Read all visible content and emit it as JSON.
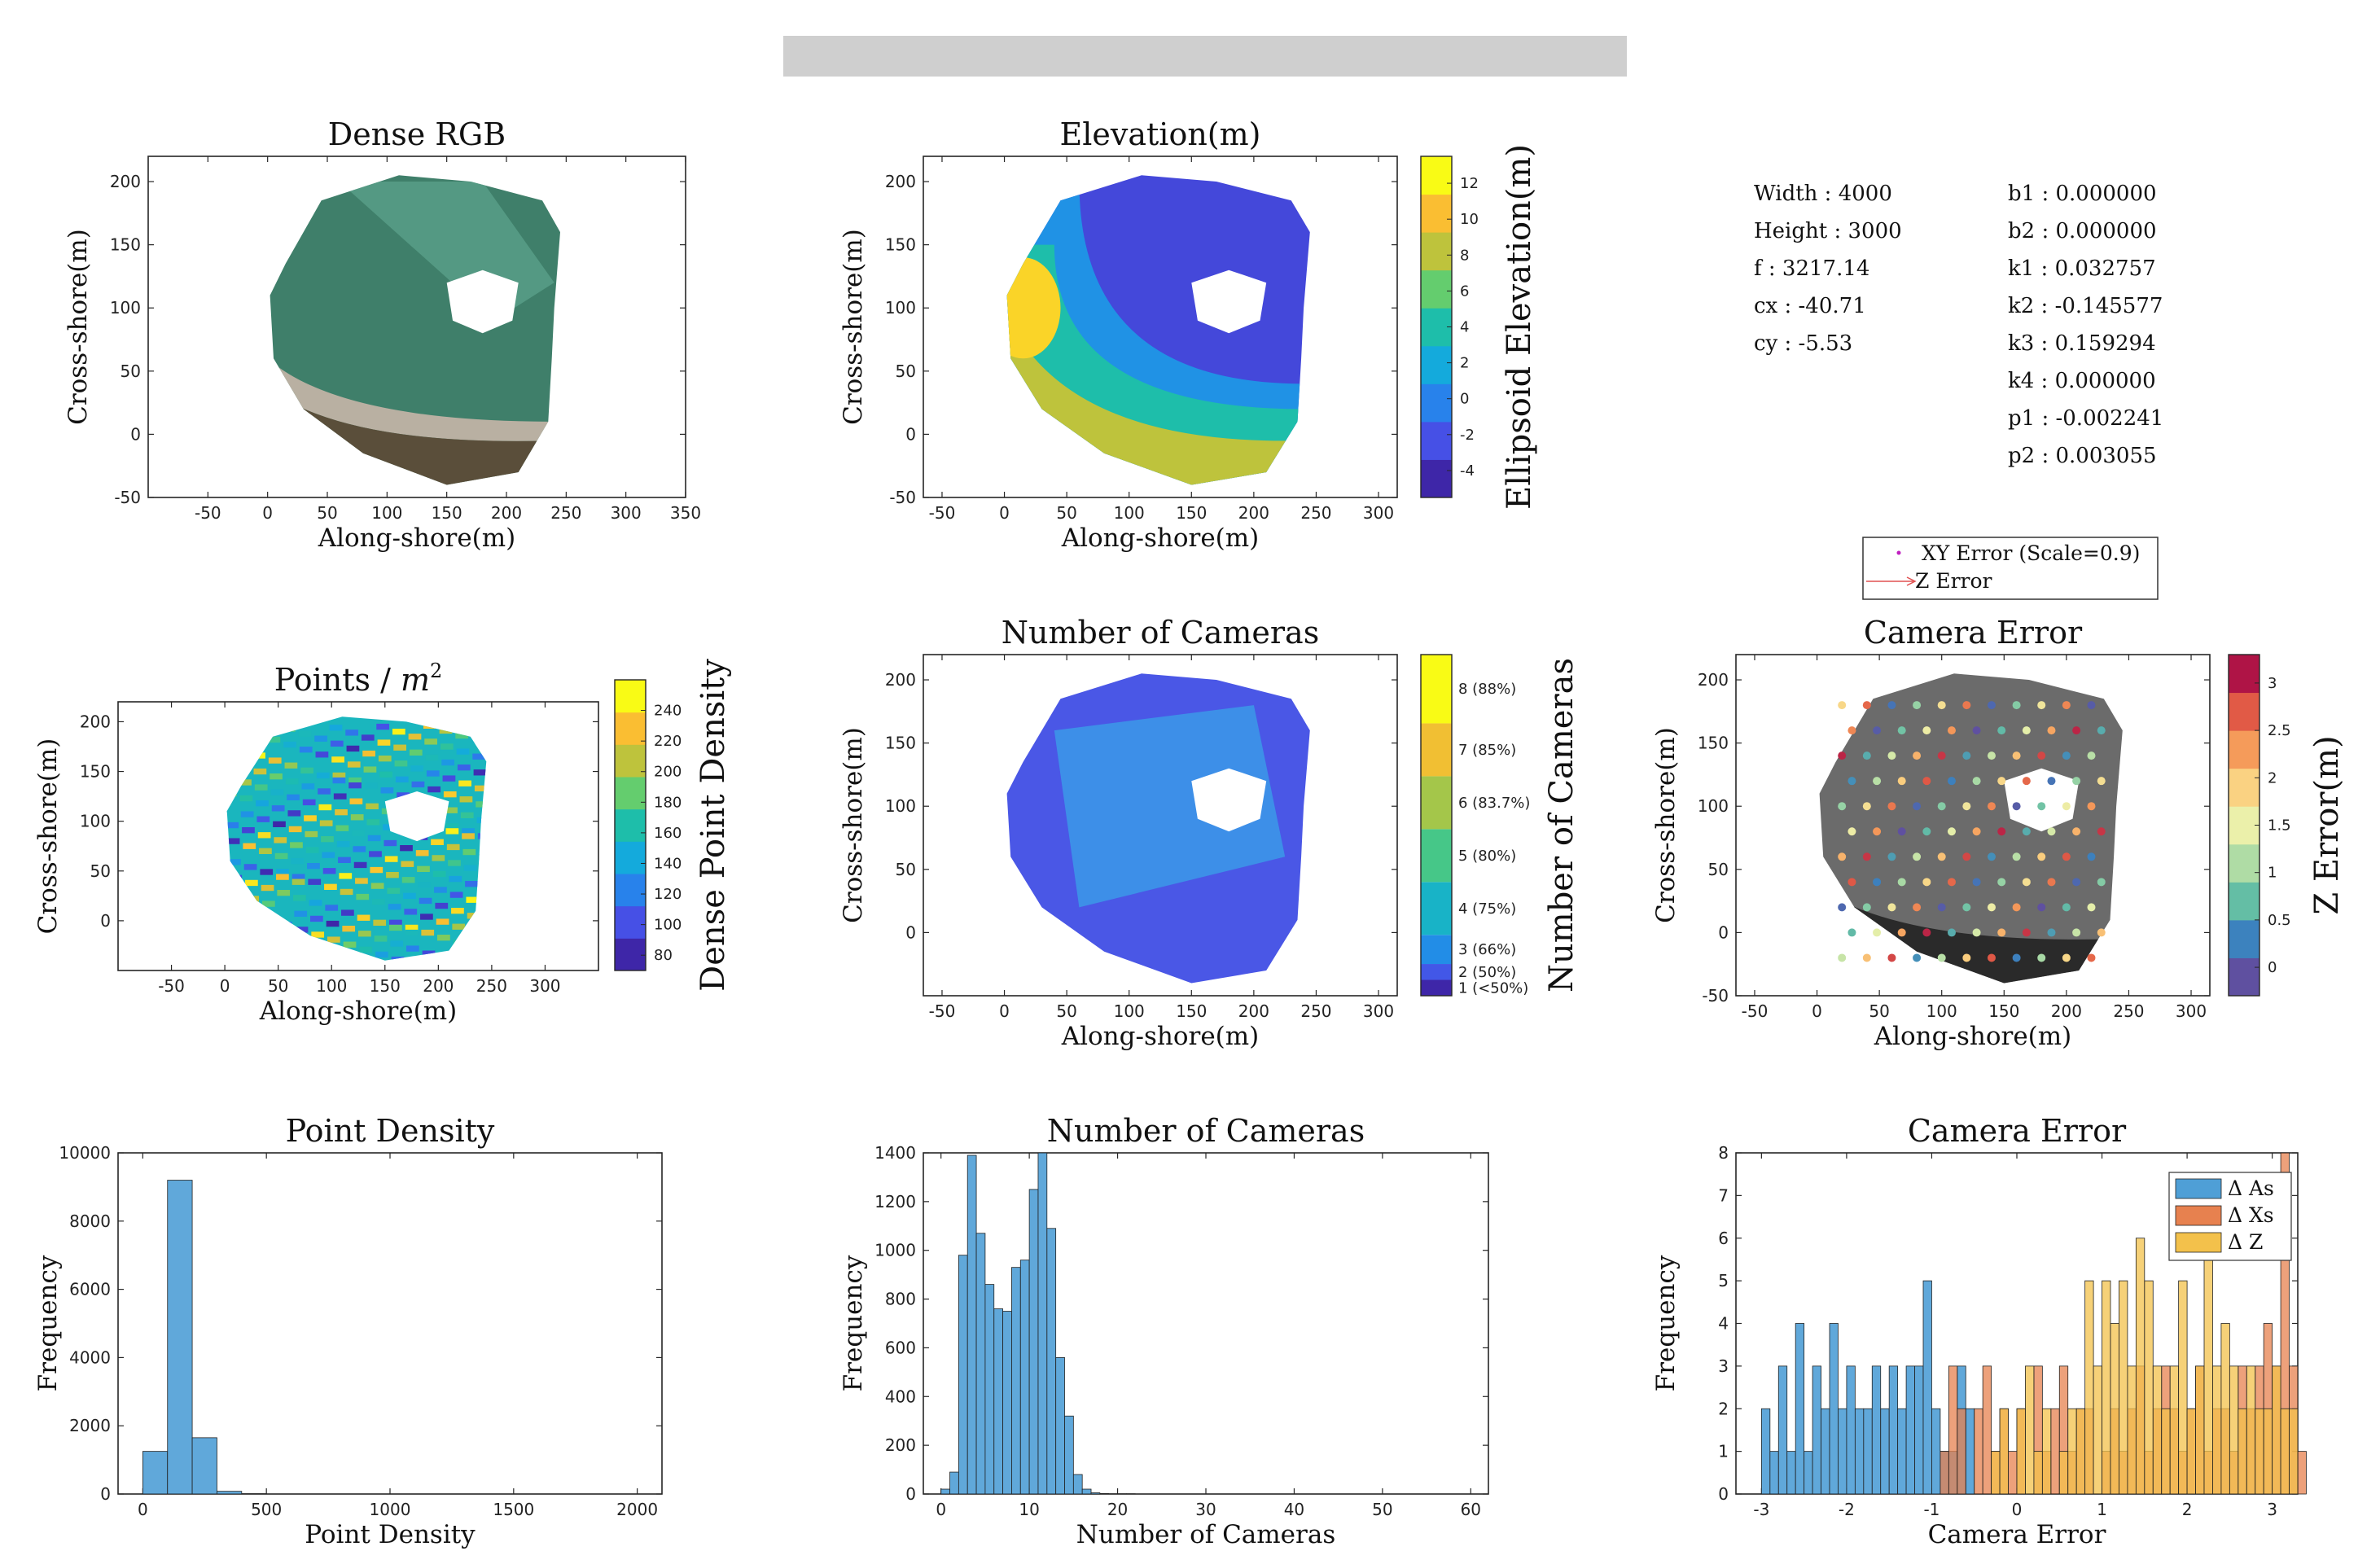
{
  "camera_info": {
    "left": [
      "Width : 4000",
      "Height : 3000",
      "f : 3217.14",
      "cx : -40.71",
      "cy : -5.53"
    ],
    "right": [
      "b1 : 0.000000",
      "b2 : 0.000000",
      "k1 : 0.032757",
      "k2 : -0.145577",
      "k3 : 0.159294",
      "k4 : 0.000000",
      "p1 : -0.002241",
      "p2 : 0.003055"
    ]
  },
  "error_legend": {
    "xy": "XY Error (Scale=0.9)",
    "z": "Z Error"
  },
  "colors": {
    "hist_blue": "#4f9fd6",
    "hist_orange": "#e7814f",
    "hist_yellow": "#f3c14b",
    "parula_low": "#3e26a8",
    "parula_high": "#f9fb15"
  },
  "chart_data": [
    {
      "id": "dense-rgb",
      "type": "heatmap",
      "title": "Dense RGB",
      "xlabel": "Along-shore(m)",
      "ylabel": "Cross-shore(m)",
      "xlim": [
        -100,
        350
      ],
      "ylim": [
        -50,
        220
      ],
      "xticks": [
        "-50",
        "0",
        "50",
        "100",
        "150",
        "200",
        "250",
        "300",
        "350"
      ],
      "yticks": [
        "-50",
        "0",
        "50",
        "100",
        "150",
        "200"
      ]
    },
    {
      "id": "elevation",
      "type": "heatmap",
      "title": "Elevation(m)",
      "xlabel": "Along-shore(m)",
      "ylabel": "Cross-shore(m)",
      "xlim": [
        -65,
        315
      ],
      "ylim": [
        -50,
        220
      ],
      "xticks": [
        "-50",
        "0",
        "50",
        "100",
        "150",
        "200",
        "250",
        "300"
      ],
      "yticks": [
        "-50",
        "0",
        "50",
        "100",
        "150",
        "200"
      ],
      "colorbar_label": "Ellipsoid Elevation(m)",
      "colorbar_ticks": [
        "-4",
        "-2",
        "0",
        "2",
        "4",
        "6",
        "8",
        "10",
        "12"
      ],
      "colorbar_range": [
        -5.5,
        13.5
      ]
    },
    {
      "id": "points-density-map",
      "type": "heatmap",
      "title": "Points /",
      "title_math": "m",
      "title_sup": "2",
      "xlabel": "Along-shore(m)",
      "ylabel": "Cross-shore(m)",
      "xlim": [
        -100,
        350
      ],
      "ylim": [
        -50,
        220
      ],
      "xticks": [
        "-50",
        "0",
        "50",
        "100",
        "150",
        "200",
        "250",
        "300"
      ],
      "yticks": [
        "0",
        "50",
        "100",
        "150",
        "200"
      ],
      "colorbar_label": "Dense Point Density",
      "colorbar_ticks": [
        "80",
        "100",
        "120",
        "140",
        "160",
        "180",
        "200",
        "220",
        "240"
      ],
      "colorbar_range": [
        70,
        260
      ]
    },
    {
      "id": "num-cameras-map",
      "type": "heatmap",
      "title": "Number of Cameras",
      "xlabel": "Along-shore(m)",
      "ylabel": "Cross-shore(m)",
      "xlim": [
        -65,
        315
      ],
      "ylim": [
        -50,
        220
      ],
      "xticks": [
        "-50",
        "0",
        "50",
        "100",
        "150",
        "200",
        "250",
        "300"
      ],
      "yticks": [
        "0",
        "50",
        "100",
        "150",
        "200"
      ],
      "colorbar_label": "Number of Cameras",
      "colorbar_ticks": [
        "1 (<50%)",
        "2 (50%)",
        "3 (66%)",
        "4 (75%)",
        "5 (80%)",
        "6 (83.7%)",
        "7 (85%)",
        "8 (88%)"
      ]
    },
    {
      "id": "camera-error-map",
      "type": "scatter",
      "title": "Camera Error",
      "xlabel": "Along-shore(m)",
      "ylabel": "Cross-shore(m)",
      "xlim": [
        -65,
        315
      ],
      "ylim": [
        -50,
        220
      ],
      "xticks": [
        "-50",
        "0",
        "50",
        "100",
        "150",
        "200",
        "250",
        "300"
      ],
      "yticks": [
        "-50",
        "0",
        "50",
        "100",
        "150",
        "200"
      ],
      "colorbar_label": "Z Error(m)",
      "colorbar_ticks": [
        "0",
        "0.5",
        "1",
        "1.5",
        "2",
        "2.5",
        "3"
      ],
      "colorbar_range": [
        -0.3,
        3.3
      ]
    },
    {
      "id": "point-density-hist",
      "type": "bar",
      "title": "Point Density",
      "xlabel": "Point Density",
      "ylabel": "Frequency",
      "xlim": [
        -100,
        2100
      ],
      "ylim": [
        0,
        10000
      ],
      "xticks": [
        "0",
        "500",
        "1000",
        "1500",
        "2000"
      ],
      "yticks": [
        "0",
        "2000",
        "4000",
        "6000",
        "8000",
        "10000"
      ],
      "bin_width": 100,
      "bin_edges_start": 0,
      "values": [
        1250,
        9200,
        1650,
        80,
        10
      ]
    },
    {
      "id": "num-cameras-hist",
      "type": "bar",
      "title": "Number of Cameras",
      "xlabel": "Number of Cameras",
      "ylabel": "Frequency",
      "xlim": [
        -2,
        62
      ],
      "ylim": [
        0,
        1400
      ],
      "xticks": [
        "0",
        "10",
        "20",
        "30",
        "40",
        "50",
        "60"
      ],
      "yticks": [
        "0",
        "200",
        "400",
        "600",
        "800",
        "1000",
        "1200",
        "1400"
      ],
      "bin_width": 1,
      "bin_edges_start": 0,
      "values": [
        20,
        90,
        980,
        1390,
        1070,
        860,
        760,
        750,
        930,
        960,
        1250,
        1400,
        1090,
        560,
        320,
        80,
        20,
        5,
        2,
        1,
        1,
        1,
        0,
        0,
        0,
        0,
        0,
        0,
        0,
        0
      ]
    },
    {
      "id": "camera-error-hist",
      "type": "bar",
      "title": "Camera Error",
      "xlabel": "Camera Error",
      "ylabel": "Frequency",
      "xlim": [
        -3.3,
        3.3
      ],
      "ylim": [
        0,
        8
      ],
      "xticks": [
        "-3",
        "-2",
        "-1",
        "0",
        "1",
        "2",
        "3"
      ],
      "yticks": [
        "0",
        "1",
        "2",
        "3",
        "4",
        "5",
        "6",
        "7",
        "8"
      ],
      "legend": [
        "Δ As",
        "Δ Xs",
        "Δ Z"
      ],
      "legend_position": "top-right",
      "series": [
        {
          "name": "Δ As",
          "bin_start": -3.0,
          "bin_width": 0.1,
          "values": [
            2,
            1,
            3,
            1,
            4,
            1,
            3,
            2,
            4,
            2,
            3,
            2,
            2,
            3,
            2,
            3,
            2,
            3,
            3,
            5,
            2,
            1,
            1,
            3,
            2,
            0,
            0,
            0,
            0,
            0,
            0,
            0,
            0,
            0,
            0,
            0,
            0,
            0,
            0,
            0,
            0,
            0,
            0,
            0,
            0,
            0,
            0,
            0,
            0,
            0,
            0,
            0,
            0,
            0,
            0,
            0,
            0,
            0,
            0,
            0
          ]
        },
        {
          "name": "Δ Xs",
          "bin_start": -0.9,
          "bin_width": 0.1,
          "values": [
            1,
            3,
            2,
            0,
            2,
            3,
            1,
            2,
            1,
            2,
            0,
            3,
            1,
            2,
            3,
            1,
            2,
            2,
            0,
            1,
            2,
            1,
            2,
            3,
            1,
            2,
            3,
            2,
            1,
            2,
            3,
            1,
            2,
            2,
            1,
            3,
            2,
            3,
            4,
            3,
            8,
            3,
            1
          ]
        },
        {
          "name": "Δ Z",
          "bin_start": -0.3,
          "bin_width": 0.1,
          "values": [
            1,
            2,
            0,
            2,
            3,
            1,
            2,
            0,
            1,
            2,
            2,
            5,
            3,
            5,
            4,
            5,
            3,
            6,
            5,
            3,
            2,
            3,
            5,
            2,
            3,
            6,
            3,
            4,
            3,
            2,
            3,
            2,
            2,
            3,
            2,
            2
          ]
        }
      ]
    }
  ]
}
